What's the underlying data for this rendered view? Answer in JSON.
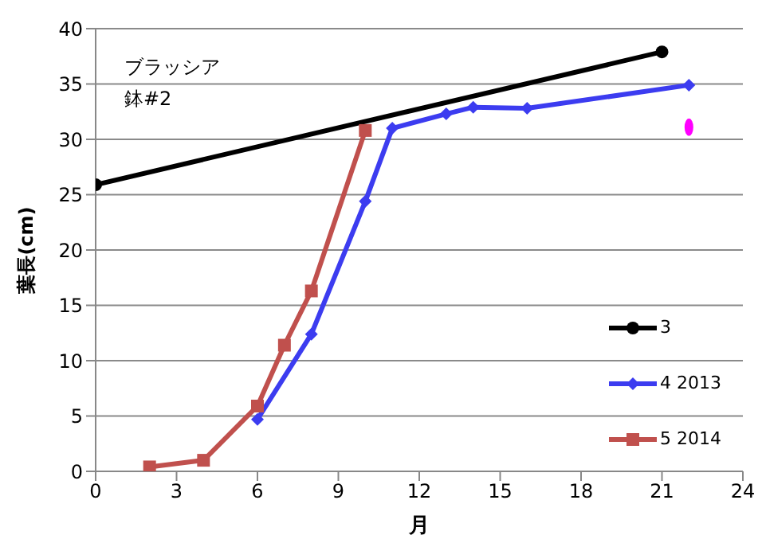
{
  "chart_data": {
    "type": "line",
    "xlabel": "月",
    "ylabel": "葉長(cm)",
    "xlim": [
      0,
      24
    ],
    "xticks": [
      0,
      3,
      6,
      9,
      12,
      15,
      18,
      21,
      24
    ],
    "ylim": [
      0,
      40
    ],
    "yticks": [
      0,
      5,
      10,
      15,
      20,
      25,
      30,
      35,
      40
    ],
    "grid": "y",
    "legend": "right",
    "line_style": "solid",
    "annotations": [
      "ブラッシア",
      "鉢#2"
    ],
    "series": [
      {
        "name": "3",
        "color": "#000000",
        "marker": "circle",
        "x": [
          0,
          21
        ],
        "values": [
          25.9,
          37.9
        ]
      },
      {
        "name": "4 2013",
        "color": "#3c3cf0",
        "marker": "diamond",
        "x": [
          6,
          8,
          10,
          11,
          13,
          14,
          16,
          22
        ],
        "values": [
          4.7,
          12.4,
          24.4,
          31.0,
          32.3,
          32.9,
          32.8,
          34.9
        ]
      },
      {
        "name": "5 2014",
        "color": "#c0504d",
        "marker": "square",
        "x": [
          2,
          4,
          6,
          7,
          8,
          10
        ],
        "values": [
          0.4,
          1.0,
          5.9,
          11.4,
          16.3,
          30.8
        ]
      },
      {
        "type": "scatter",
        "color": "#ff00ff",
        "marker": "circle",
        "x": [
          22
        ],
        "values": [
          31.1
        ]
      }
    ]
  }
}
